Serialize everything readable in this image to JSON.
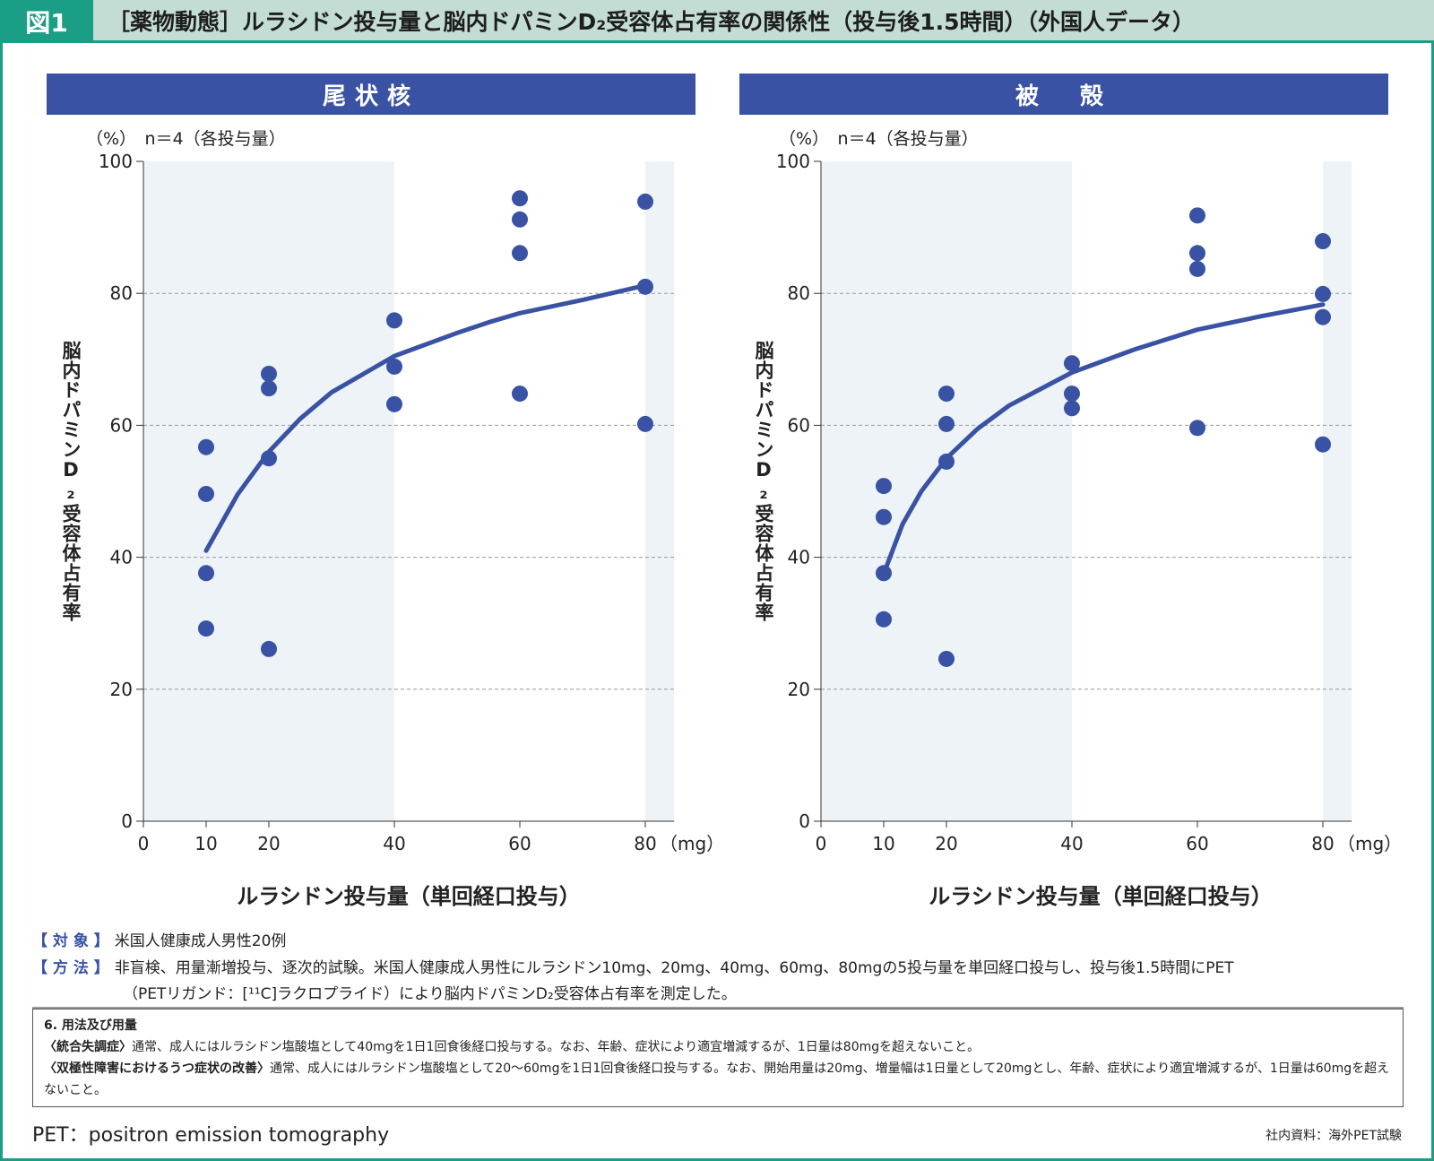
{
  "header": {
    "figure_label": "図1",
    "title": "［薬物動態］ルラシドン投与量と脳内ドパミンD₂受容体占有率の関係性（投与後1.5時間）（外国人データ）"
  },
  "colors": {
    "accent": "#1a9e86",
    "panel": "#3952a4",
    "point": "#3952a4",
    "shade": "#edf3f6"
  },
  "chart_data": [
    {
      "type": "scatter",
      "title": "尾状核",
      "unit_note": "（%）　n＝4（各投与量）",
      "ylabel": "脳内ドパミンD₂受容体占有率",
      "xlabel": "ルラシドン投与量（単回経口投与）",
      "x_unit": "（mg）",
      "xticks": [
        0,
        10,
        20,
        40,
        60,
        80
      ],
      "yticks": [
        0,
        20,
        40,
        60,
        80,
        100
      ],
      "xlim": [
        0,
        84.6
      ],
      "ylim": [
        0,
        100
      ],
      "grid": "dashed horizontal at 20,40,60,80",
      "shaded_x_ranges": [
        [
          0,
          40
        ],
        [
          80,
          84.6
        ]
      ],
      "points": [
        [
          10,
          56.7
        ],
        [
          10,
          49.6
        ],
        [
          10,
          37.6
        ],
        [
          10,
          29.2
        ],
        [
          20,
          67.8
        ],
        [
          20,
          65.6
        ],
        [
          20,
          55.0
        ],
        [
          20,
          26.1
        ],
        [
          40,
          75.9
        ],
        [
          40,
          68.9
        ],
        [
          40,
          63.2
        ],
        [
          60,
          94.4
        ],
        [
          60,
          91.2
        ],
        [
          60,
          86.1
        ],
        [
          60,
          64.8
        ],
        [
          80,
          93.9
        ],
        [
          80,
          81.0
        ],
        [
          80,
          60.2
        ]
      ],
      "fit_curve": [
        [
          10,
          41
        ],
        [
          15,
          49.5
        ],
        [
          20,
          56
        ],
        [
          25,
          61
        ],
        [
          30,
          65
        ],
        [
          40,
          70.5
        ],
        [
          50,
          74
        ],
        [
          55,
          75.6
        ],
        [
          60,
          77
        ],
        [
          70,
          79
        ],
        [
          80,
          81.2
        ]
      ]
    },
    {
      "type": "scatter",
      "title": "被　殻",
      "unit_note": "（%）　n＝4（各投与量）",
      "ylabel": "脳内ドパミンD₂受容体占有率",
      "xlabel": "ルラシドン投与量（単回経口投与）",
      "x_unit": "（mg）",
      "xticks": [
        0,
        10,
        20,
        40,
        60,
        80
      ],
      "yticks": [
        0,
        20,
        40,
        60,
        80,
        100
      ],
      "xlim": [
        0,
        84.6
      ],
      "ylim": [
        0,
        100
      ],
      "grid": "dashed horizontal at 20,40,60,80",
      "shaded_x_ranges": [
        [
          0,
          40
        ],
        [
          80,
          84.6
        ]
      ],
      "points": [
        [
          10,
          50.8
        ],
        [
          10,
          46.1
        ],
        [
          10,
          37.6
        ],
        [
          10,
          30.6
        ],
        [
          20,
          64.8
        ],
        [
          20,
          60.2
        ],
        [
          20,
          54.5
        ],
        [
          20,
          24.6
        ],
        [
          40,
          69.4
        ],
        [
          40,
          64.8
        ],
        [
          40,
          62.6
        ],
        [
          60,
          91.8
        ],
        [
          60,
          86.1
        ],
        [
          60,
          83.7
        ],
        [
          60,
          59.6
        ],
        [
          80,
          87.9
        ],
        [
          80,
          79.9
        ],
        [
          80,
          76.4
        ],
        [
          80,
          57.1
        ]
      ],
      "fit_curve": [
        [
          10,
          37.5
        ],
        [
          13,
          45
        ],
        [
          16,
          50
        ],
        [
          20,
          55
        ],
        [
          25,
          59.5
        ],
        [
          30,
          63
        ],
        [
          40,
          68
        ],
        [
          50,
          71.5
        ],
        [
          60,
          74.5
        ],
        [
          70,
          76.5
        ],
        [
          80,
          78.3
        ]
      ]
    }
  ],
  "notes": {
    "subject_label": "【 対 象 】",
    "subject": "米国人健康成人男性20例",
    "method_label": "【 方 法 】",
    "method_1": "非盲検、用量漸増投与、逐次的試験。米国人健康成人男性にルラシドン10mg、20mg、40mg、60mg、80mgの5投与量を単回経口投与し、投与後1.5時間にPET",
    "method_2": "（PETリガンド：[¹¹C]ラクロプライド）により脳内ドパミンD₂受容体占有率を測定した。"
  },
  "dosage": {
    "heading": "6. 用法及び用量",
    "s1_label": "〈統合失調症〉",
    "s1": "通常、成人にはルラシドン塩酸塩として40mgを1日1回食後経口投与する。なお、年齢、症状により適宜増減するが、1日量は80mgを超えないこと。",
    "s2_label": "〈双極性障害におけるうつ症状の改善〉",
    "s2": "通常、成人にはルラシドン塩酸塩として20〜60mgを1日1回食後経口投与する。なお、開始用量は20mg、増量幅は1日量として20mgとし、年齢、症状により適宜増減するが、1日量は60mgを超えないこと。"
  },
  "footer": {
    "abbrev": "PET：positron emission tomography",
    "source": "社内資料：海外PET試験"
  }
}
